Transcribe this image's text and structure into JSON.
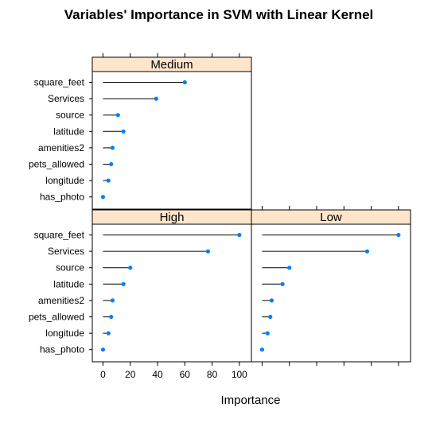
{
  "chart_data": {
    "type": "dotplot",
    "title": "Variables' Importance in SVM with Linear Kernel",
    "xlabel": "Importance",
    "xlim": [
      -2,
      103
    ],
    "xticks": [
      0,
      20,
      40,
      60,
      80,
      100
    ],
    "categories": [
      "square_feet",
      "Services",
      "source",
      "latitude",
      "amenities2",
      "pets_allowed",
      "longitude",
      "has_photo"
    ],
    "panels": [
      {
        "name": "Medium",
        "values": [
          60,
          39,
          11,
          15,
          7,
          6,
          4,
          0
        ]
      },
      {
        "name": "High",
        "values": [
          100,
          77,
          20,
          15,
          7,
          6,
          4,
          0
        ]
      },
      {
        "name": "Low",
        "values": [
          100,
          77,
          20,
          15,
          7,
          6,
          4,
          0
        ]
      }
    ],
    "colors": {
      "strip": "#ffe5cc",
      "point": "#0080ff",
      "line": "#000000"
    }
  }
}
